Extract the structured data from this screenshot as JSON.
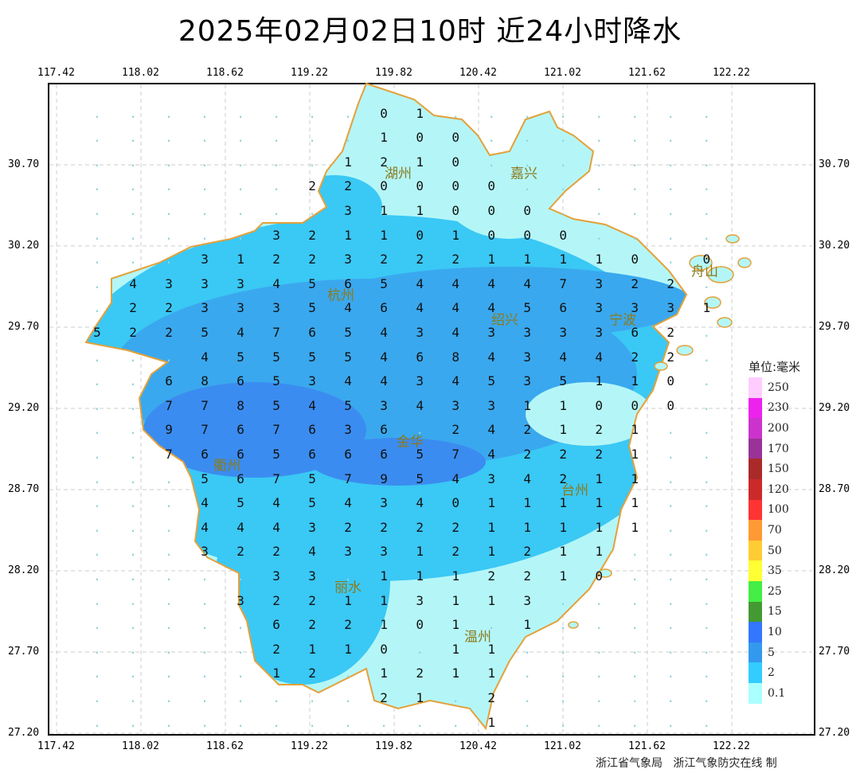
{
  "title": "2025年02月02日10时  近24小时降水",
  "axes": {
    "lon_ticks": [
      "117.42",
      "118.02",
      "118.62",
      "119.22",
      "119.82",
      "120.42",
      "121.02",
      "121.62",
      "122.22"
    ],
    "lat_ticks": [
      "30.70",
      "30.20",
      "29.70",
      "29.20",
      "28.70",
      "28.20",
      "27.70",
      "27.20"
    ]
  },
  "cities": [
    "湖州",
    "嘉兴",
    "杭州",
    "绍兴",
    "宁波",
    "舟山",
    "金华",
    "衢州",
    "台州",
    "丽水",
    "温州"
  ],
  "legend": {
    "title": "单位:毫米",
    "items": [
      {
        "label": "250",
        "color": "#ffccff"
      },
      {
        "label": "230",
        "color": "#ee22ee"
      },
      {
        "label": "200",
        "color": "#cc33cc"
      },
      {
        "label": "170",
        "color": "#993399"
      },
      {
        "label": "150",
        "color": "#aa2a2a"
      },
      {
        "label": "120",
        "color": "#cc2a2a"
      },
      {
        "label": "100",
        "color": "#ff3333"
      },
      {
        "label": "70",
        "color": "#ff9933"
      },
      {
        "label": "50",
        "color": "#ffcc33"
      },
      {
        "label": "35",
        "color": "#ffff33"
      },
      {
        "label": "25",
        "color": "#44ee44"
      },
      {
        "label": "15",
        "color": "#449933"
      },
      {
        "label": "10",
        "color": "#3377ff"
      },
      {
        "label": "5",
        "color": "#3399ee"
      },
      {
        "label": "2",
        "color": "#33ccff"
      },
      {
        "label": "0.1",
        "color": "#aaffff"
      }
    ]
  },
  "station_grid": [
    "..................",
    "........01........",
    "........100.......",
    ".......1210.......",
    "......220000......",
    ".......311000.....",
    ".....321101000....",
    "...3122322211110.0",
    ".4333456544447322.",
    ".22333546444563331",
    "52254765434333362.",
    "...45555468434422.",
    "..686534434535110.",
    "..778545343311000.",
    "..9767636.242121..",
    "..76656665742221..",
    "...5675795434211..",
    "...4545434011111..",
    "...4443222211111..",
    "...322433121211...",
    ".....33.1112210...",
    "....322113113.....",
    ".....622101.1.....",
    ".....2110.11......",
    ".....12.1211......",
    "........21.2......",
    "...........1......"
  ],
  "footer": "浙江省气象局   浙江气象防灾在线 制"
}
